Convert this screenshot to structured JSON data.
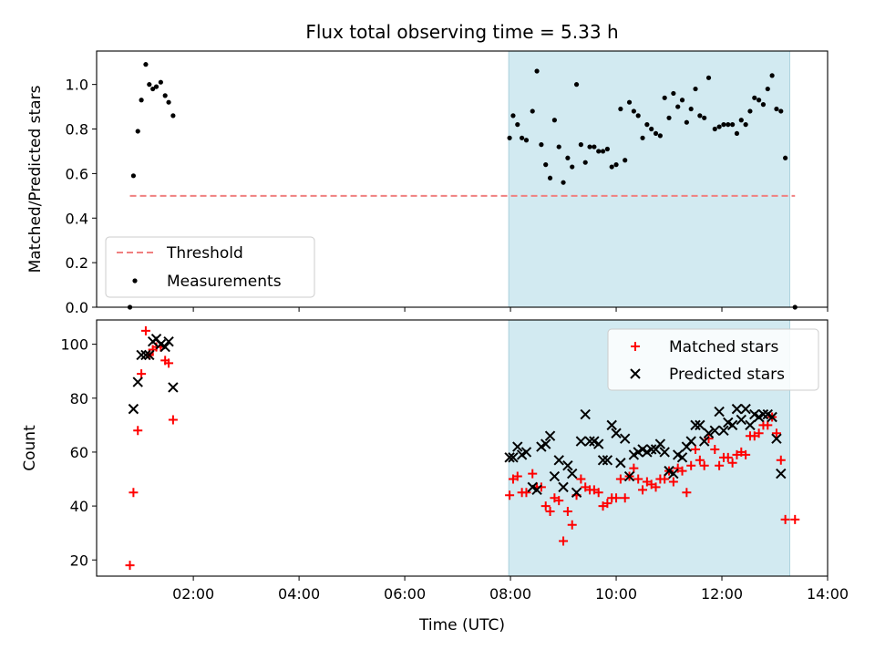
{
  "title": "Flux total observing time = 5.33 h",
  "colors": {
    "threshold": "#f08080",
    "measurement": "#000000",
    "matched": "#ff0000",
    "predicted": "#000000",
    "highlight": "#add8e6"
  },
  "chart_data": [
    {
      "type": "scatter",
      "panel": "top",
      "ylabel": "Matched/Predicted stars",
      "xlabel": "",
      "ylim": [
        0,
        1.15
      ],
      "yticks": [
        "0.0",
        "0.2",
        "0.4",
        "0.6",
        "0.8",
        "1.0"
      ],
      "x_unit": "hours UTC",
      "xlim": [
        0.17,
        14.0
      ],
      "highlight_span": [
        "07:58",
        "13:17"
      ],
      "threshold": {
        "name": "Threshold",
        "y": 0.5,
        "x_start": "00:48",
        "x_end": "13:23",
        "style": "dashed"
      },
      "legend": {
        "position": "lower-left",
        "entries": [
          "Threshold",
          "Measurements"
        ]
      },
      "series": [
        {
          "name": "Measurements",
          "marker": "dot",
          "points": [
            [
              "00:48",
              0.0
            ],
            [
              "00:52",
              0.59
            ],
            [
              "00:57",
              0.79
            ],
            [
              "01:01",
              0.93
            ],
            [
              "01:06",
              1.09
            ],
            [
              "01:10",
              1.0
            ],
            [
              "01:14",
              0.98
            ],
            [
              "01:18",
              0.99
            ],
            [
              "01:23",
              1.01
            ],
            [
              "01:28",
              0.95
            ],
            [
              "01:32",
              0.92
            ],
            [
              "01:37",
              0.86
            ],
            [
              "07:59",
              0.76
            ],
            [
              "08:03",
              0.86
            ],
            [
              "08:08",
              0.82
            ],
            [
              "08:13",
              0.76
            ],
            [
              "08:18",
              0.75
            ],
            [
              "08:25",
              0.88
            ],
            [
              "08:30",
              1.06
            ],
            [
              "08:35",
              0.73
            ],
            [
              "08:40",
              0.64
            ],
            [
              "08:45",
              0.58
            ],
            [
              "08:50",
              0.84
            ],
            [
              "08:55",
              0.72
            ],
            [
              "09:00",
              0.56
            ],
            [
              "09:05",
              0.67
            ],
            [
              "09:10",
              0.63
            ],
            [
              "09:15",
              1.0
            ],
            [
              "09:20",
              0.73
            ],
            [
              "09:25",
              0.65
            ],
            [
              "09:30",
              0.72
            ],
            [
              "09:35",
              0.72
            ],
            [
              "09:40",
              0.7
            ],
            [
              "09:45",
              0.7
            ],
            [
              "09:50",
              0.71
            ],
            [
              "09:55",
              0.63
            ],
            [
              "10:00",
              0.64
            ],
            [
              "10:05",
              0.89
            ],
            [
              "10:10",
              0.66
            ],
            [
              "10:15",
              0.92
            ],
            [
              "10:20",
              0.88
            ],
            [
              "10:25",
              0.86
            ],
            [
              "10:30",
              0.76
            ],
            [
              "10:35",
              0.82
            ],
            [
              "10:40",
              0.8
            ],
            [
              "10:45",
              0.78
            ],
            [
              "10:50",
              0.77
            ],
            [
              "10:55",
              0.94
            ],
            [
              "11:00",
              0.85
            ],
            [
              "11:05",
              0.96
            ],
            [
              "11:10",
              0.9
            ],
            [
              "11:15",
              0.93
            ],
            [
              "11:20",
              0.83
            ],
            [
              "11:25",
              0.89
            ],
            [
              "11:30",
              0.98
            ],
            [
              "11:35",
              0.86
            ],
            [
              "11:40",
              0.85
            ],
            [
              "11:45",
              1.03
            ],
            [
              "11:52",
              0.8
            ],
            [
              "11:57",
              0.81
            ],
            [
              "12:02",
              0.82
            ],
            [
              "12:07",
              0.82
            ],
            [
              "12:12",
              0.82
            ],
            [
              "12:17",
              0.78
            ],
            [
              "12:22",
              0.84
            ],
            [
              "12:27",
              0.82
            ],
            [
              "12:32",
              0.88
            ],
            [
              "12:37",
              0.94
            ],
            [
              "12:42",
              0.93
            ],
            [
              "12:47",
              0.91
            ],
            [
              "12:52",
              0.98
            ],
            [
              "12:57",
              1.04
            ],
            [
              "13:02",
              0.89
            ],
            [
              "13:07",
              0.88
            ],
            [
              "13:12",
              0.67
            ],
            [
              "13:23",
              0.0
            ]
          ]
        }
      ]
    },
    {
      "type": "scatter",
      "panel": "bottom",
      "ylabel": "Count",
      "xlabel": "Time (UTC)",
      "ylim": [
        14,
        109
      ],
      "yticks": [
        "20",
        "40",
        "60",
        "80",
        "100"
      ],
      "xticks": [
        "02:00",
        "04:00",
        "06:00",
        "08:00",
        "10:00",
        "12:00",
        "14:00"
      ],
      "x_unit": "hours UTC",
      "xlim": [
        0.17,
        14.0
      ],
      "highlight_span": [
        "07:58",
        "13:17"
      ],
      "legend": {
        "position": "top-right",
        "entries": [
          "Matched stars",
          "Predicted stars"
        ]
      },
      "series": [
        {
          "name": "Matched stars",
          "marker": "plus",
          "points": [
            [
              "00:48",
              18
            ],
            [
              "00:52",
              45
            ],
            [
              "00:57",
              68
            ],
            [
              "01:01",
              89
            ],
            [
              "01:06",
              105
            ],
            [
              "01:10",
              96
            ],
            [
              "01:14",
              98
            ],
            [
              "01:18",
              99
            ],
            [
              "01:23",
              99
            ],
            [
              "01:28",
              94
            ],
            [
              "01:32",
              93
            ],
            [
              "01:37",
              72
            ],
            [
              "07:59",
              44
            ],
            [
              "08:03",
              50
            ],
            [
              "08:08",
              51
            ],
            [
              "08:13",
              45
            ],
            [
              "08:18",
              45
            ],
            [
              "08:25",
              52
            ],
            [
              "08:30",
              47
            ],
            [
              "08:35",
              47
            ],
            [
              "08:40",
              40
            ],
            [
              "08:45",
              38
            ],
            [
              "08:50",
              43
            ],
            [
              "08:55",
              42
            ],
            [
              "09:00",
              27
            ],
            [
              "09:05",
              38
            ],
            [
              "09:10",
              33
            ],
            [
              "09:15",
              44
            ],
            [
              "09:20",
              50
            ],
            [
              "09:25",
              47
            ],
            [
              "09:30",
              46
            ],
            [
              "09:35",
              46
            ],
            [
              "09:40",
              45
            ],
            [
              "09:45",
              40
            ],
            [
              "09:50",
              41
            ],
            [
              "09:55",
              43
            ],
            [
              "10:00",
              43
            ],
            [
              "10:05",
              50
            ],
            [
              "10:10",
              43
            ],
            [
              "10:15",
              51
            ],
            [
              "10:20",
              54
            ],
            [
              "10:25",
              50
            ],
            [
              "10:30",
              46
            ],
            [
              "10:35",
              49
            ],
            [
              "10:40",
              48
            ],
            [
              "10:45",
              47
            ],
            [
              "10:50",
              50
            ],
            [
              "10:55",
              50
            ],
            [
              "11:00",
              53
            ],
            [
              "11:05",
              49
            ],
            [
              "11:10",
              54
            ],
            [
              "11:15",
              53
            ],
            [
              "11:20",
              45
            ],
            [
              "11:25",
              55
            ],
            [
              "11:30",
              61
            ],
            [
              "11:35",
              57
            ],
            [
              "11:40",
              55
            ],
            [
              "11:45",
              65
            ],
            [
              "11:52",
              61
            ],
            [
              "11:57",
              55
            ],
            [
              "12:02",
              58
            ],
            [
              "12:07",
              58
            ],
            [
              "12:12",
              56
            ],
            [
              "12:17",
              59
            ],
            [
              "12:22",
              60
            ],
            [
              "12:27",
              59
            ],
            [
              "12:32",
              66
            ],
            [
              "12:37",
              66
            ],
            [
              "12:42",
              67
            ],
            [
              "12:47",
              70
            ],
            [
              "12:52",
              70
            ],
            [
              "12:57",
              73
            ],
            [
              "13:02",
              67
            ],
            [
              "13:07",
              57
            ],
            [
              "13:12",
              35
            ],
            [
              "13:23",
              35
            ]
          ]
        },
        {
          "name": "Predicted stars",
          "marker": "x",
          "points": [
            [
              "00:52",
              76
            ],
            [
              "00:57",
              86
            ],
            [
              "01:01",
              96
            ],
            [
              "01:06",
              96
            ],
            [
              "01:10",
              96
            ],
            [
              "01:14",
              101
            ],
            [
              "01:18",
              102
            ],
            [
              "01:23",
              100
            ],
            [
              "01:28",
              99
            ],
            [
              "01:32",
              101
            ],
            [
              "01:37",
              84
            ],
            [
              "07:59",
              58
            ],
            [
              "08:03",
              58
            ],
            [
              "08:08",
              62
            ],
            [
              "08:13",
              59
            ],
            [
              "08:18",
              60
            ],
            [
              "08:25",
              47
            ],
            [
              "08:30",
              46
            ],
            [
              "08:35",
              62
            ],
            [
              "08:40",
              63
            ],
            [
              "08:45",
              66
            ],
            [
              "08:50",
              51
            ],
            [
              "08:55",
              57
            ],
            [
              "09:00",
              47
            ],
            [
              "09:05",
              55
            ],
            [
              "09:10",
              52
            ],
            [
              "09:15",
              45
            ],
            [
              "09:20",
              64
            ],
            [
              "09:25",
              74
            ],
            [
              "09:30",
              64
            ],
            [
              "09:35",
              64
            ],
            [
              "09:40",
              63
            ],
            [
              "09:45",
              57
            ],
            [
              "09:50",
              57
            ],
            [
              "09:55",
              70
            ],
            [
              "10:00",
              67
            ],
            [
              "10:05",
              56
            ],
            [
              "10:10",
              65
            ],
            [
              "10:15",
              51
            ],
            [
              "10:20",
              59
            ],
            [
              "10:25",
              60
            ],
            [
              "10:30",
              61
            ],
            [
              "10:35",
              60
            ],
            [
              "10:40",
              61
            ],
            [
              "10:45",
              61
            ],
            [
              "10:50",
              63
            ],
            [
              "10:55",
              60
            ],
            [
              "11:00",
              53
            ],
            [
              "11:05",
              52
            ],
            [
              "11:10",
              59
            ],
            [
              "11:15",
              58
            ],
            [
              "11:20",
              62
            ],
            [
              "11:25",
              64
            ],
            [
              "11:30",
              70
            ],
            [
              "11:35",
              70
            ],
            [
              "11:40",
              64
            ],
            [
              "11:45",
              67
            ],
            [
              "11:52",
              68
            ],
            [
              "11:57",
              75
            ],
            [
              "12:02",
              68
            ],
            [
              "12:07",
              71
            ],
            [
              "12:12",
              70
            ],
            [
              "12:17",
              76
            ],
            [
              "12:22",
              72
            ],
            [
              "12:27",
              76
            ],
            [
              "12:32",
              70
            ],
            [
              "12:37",
              74
            ],
            [
              "12:42",
              73
            ],
            [
              "12:47",
              74
            ],
            [
              "12:52",
              74
            ],
            [
              "12:57",
              73
            ],
            [
              "13:02",
              65
            ],
            [
              "13:07",
              52
            ]
          ]
        }
      ]
    }
  ]
}
